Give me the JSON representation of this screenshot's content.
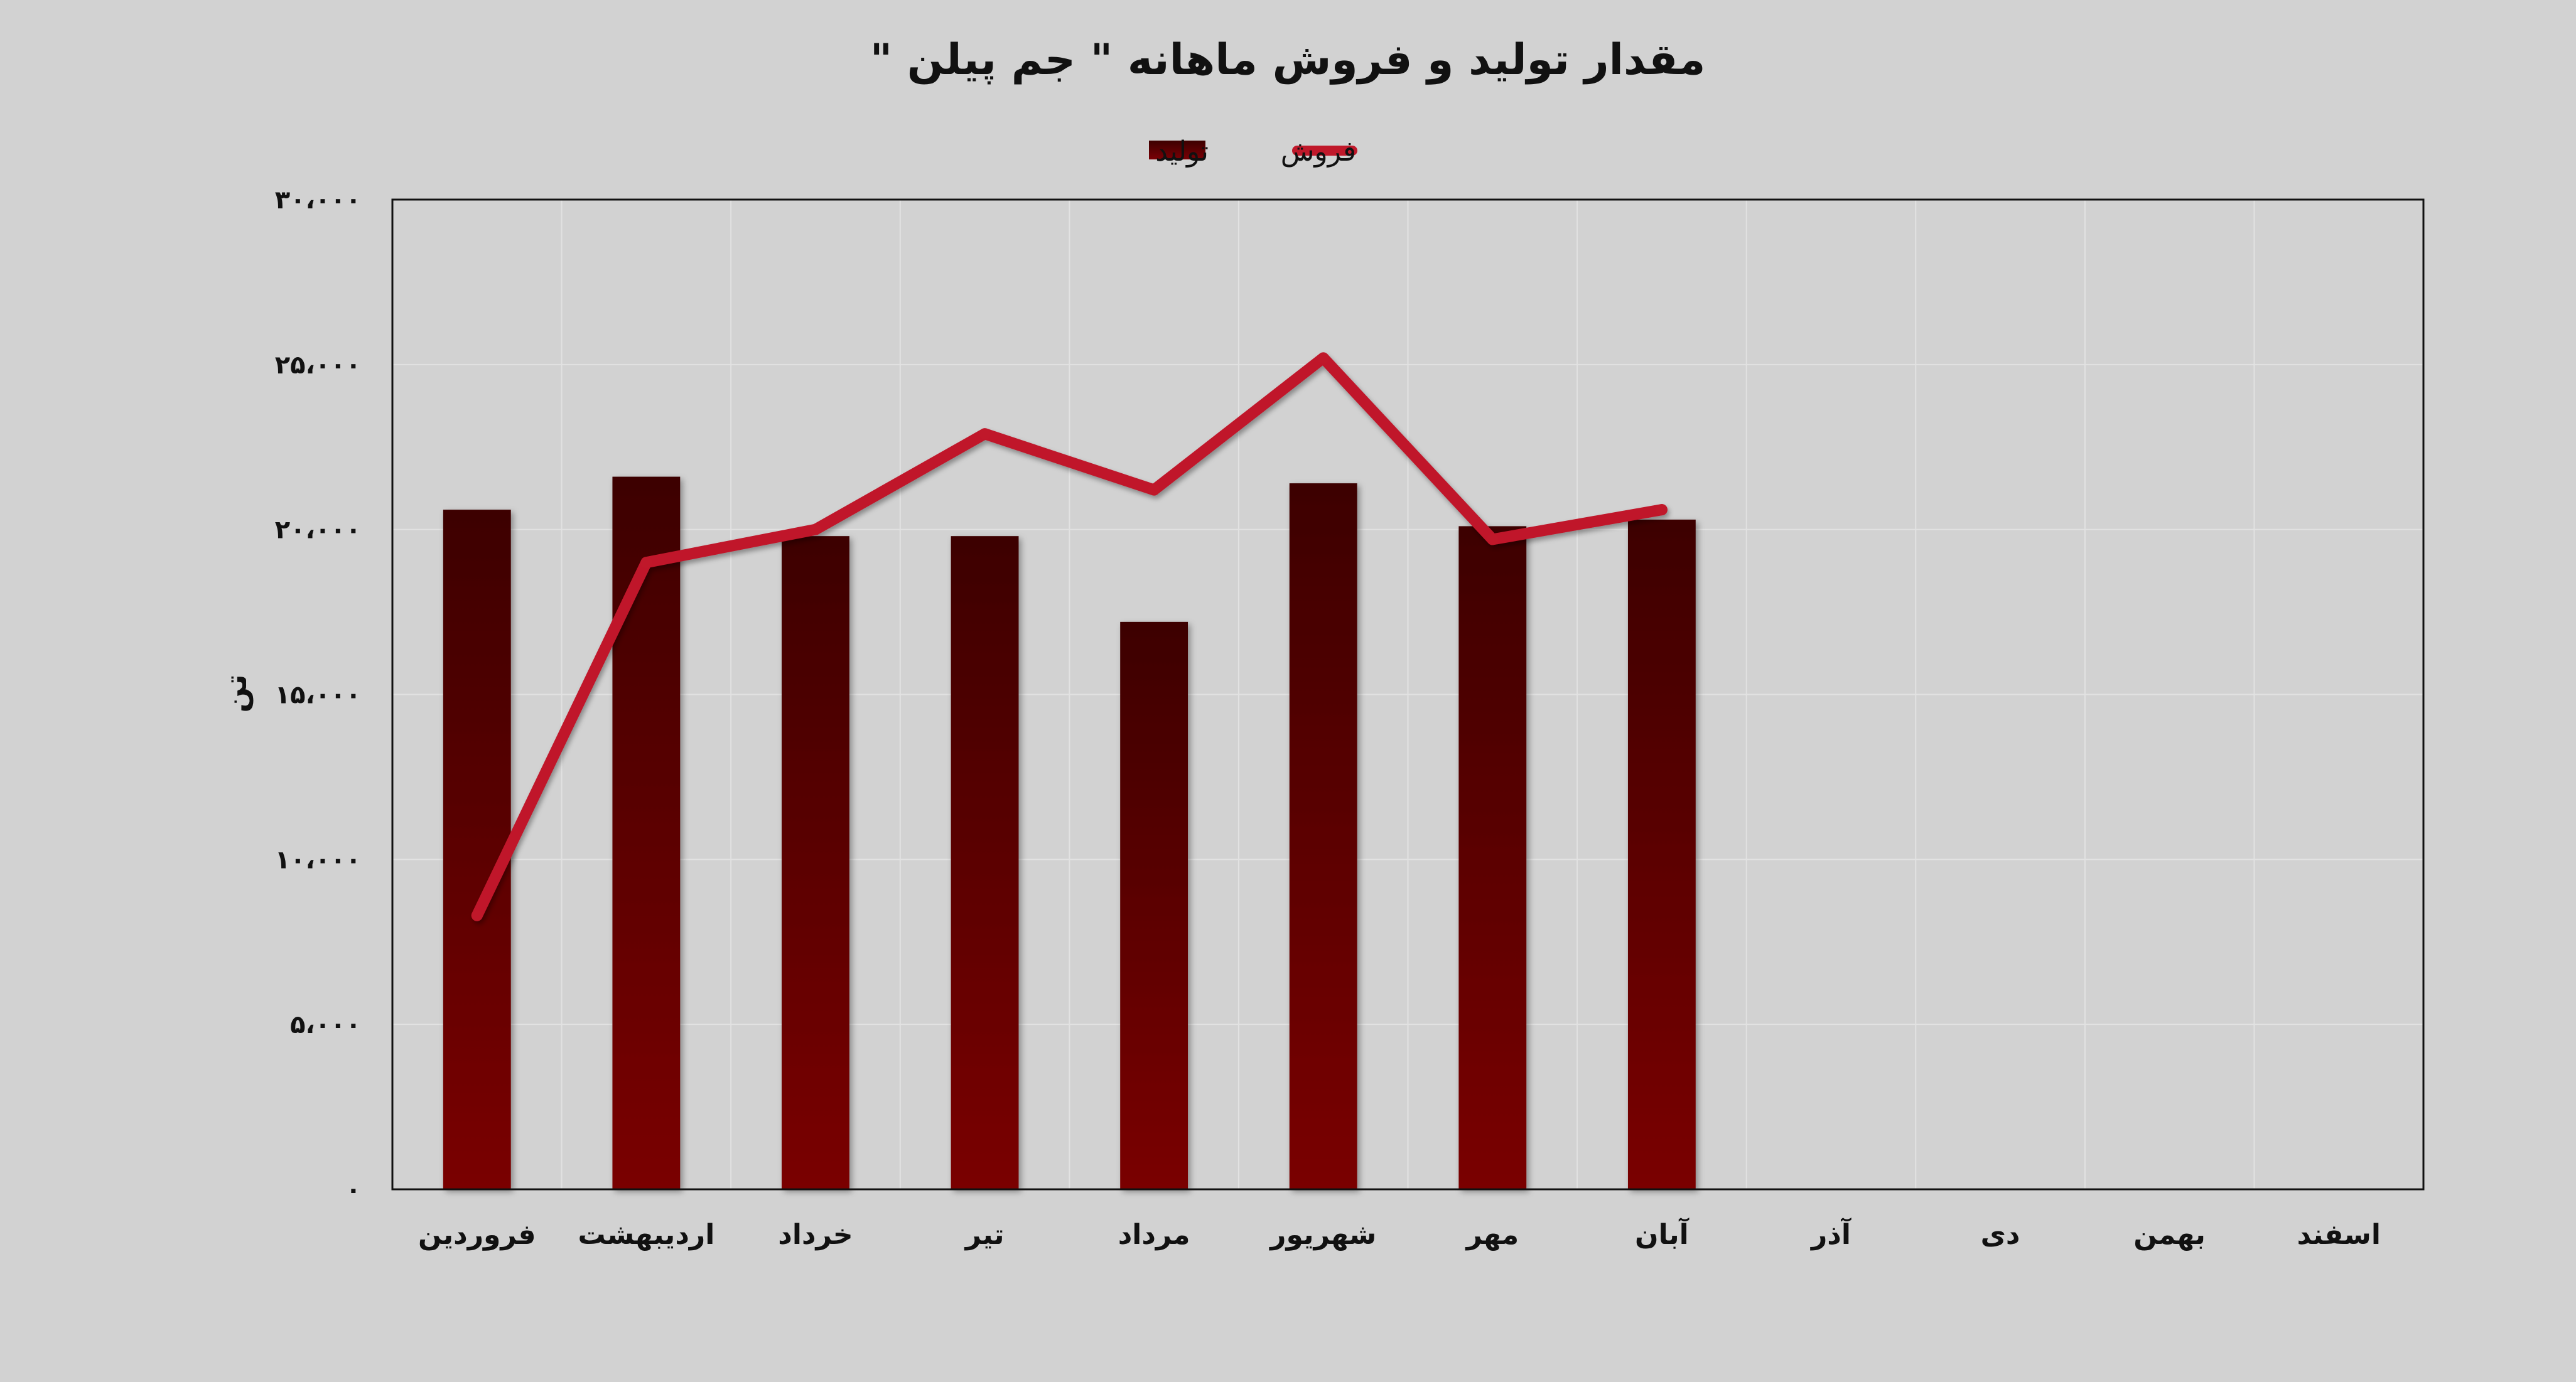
{
  "chart_data": {
    "type": "bar",
    "title": "مقدار تولید و فروش ماهانه \" جم پیلن \"",
    "ylabel": "تن",
    "xlabel": "",
    "ylim": [
      0,
      30000
    ],
    "grid": true,
    "legend": "top-center",
    "yticks": [
      0,
      5000,
      10000,
      15000,
      20000,
      25000,
      30000
    ],
    "ytick_labels": [
      "۰",
      "۵،۰۰۰",
      "۱۰،۰۰۰",
      "۱۵،۰۰۰",
      "۲۰،۰۰۰",
      "۲۵،۰۰۰",
      "۳۰،۰۰۰"
    ],
    "categories": [
      "فروردین",
      "اردیبهشت",
      "خرداد",
      "تیر",
      "مرداد",
      "شهریور",
      "مهر",
      "آبان",
      "آذر",
      "دی",
      "بهمن",
      "اسفند"
    ],
    "series": [
      {
        "name": "تولید",
        "kind": "bar",
        "color": "#6e0000",
        "values": [
          20600,
          21600,
          19800,
          19800,
          17200,
          21400,
          20100,
          20300,
          null,
          null,
          null,
          null
        ]
      },
      {
        "name": "فروش",
        "kind": "line",
        "color": "#c0182a",
        "values": [
          8300,
          19000,
          20000,
          22900,
          21200,
          25200,
          19700,
          20600,
          null,
          null,
          null,
          null
        ]
      }
    ]
  },
  "colors": {
    "background": "#d2d2d2",
    "bar_top": "#3d0000",
    "bar_bottom": "#7a0005",
    "line": "#c0182a",
    "grid": "#e2e2e2",
    "axis": "#111111",
    "text": "#111111"
  }
}
